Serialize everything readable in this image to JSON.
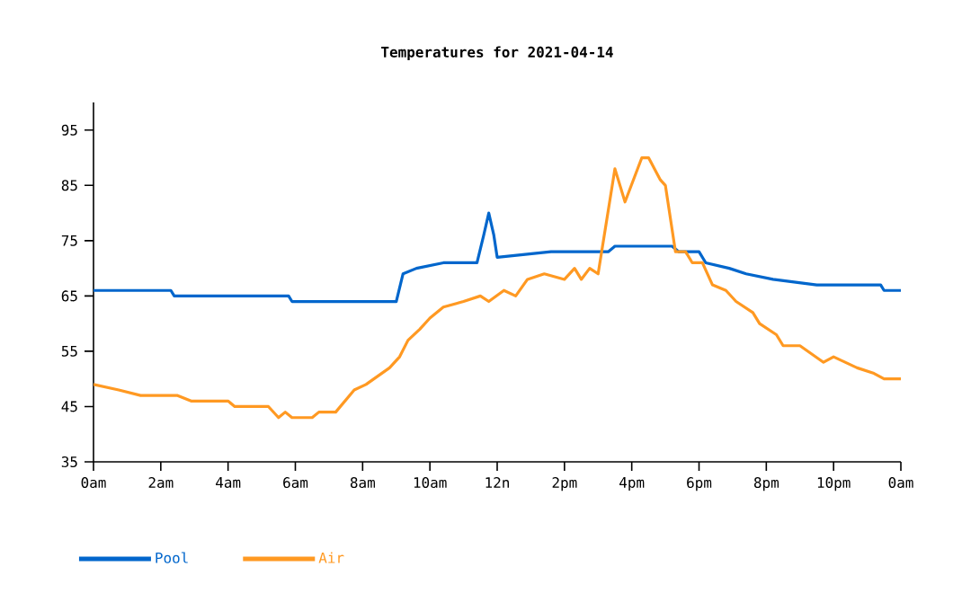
{
  "chart_data": {
    "type": "line",
    "title": "Temperatures for 2021-04-14",
    "xlim": [
      "2021-04-14T00:00",
      "2021-04-15T00:00"
    ],
    "ylim": [
      35,
      100
    ],
    "xticks": [
      {
        "value": "2021-04-14T00:00",
        "label": "0am"
      },
      {
        "value": "2021-04-14T02:00",
        "label": "2am"
      },
      {
        "value": "2021-04-14T04:00",
        "label": "4am"
      },
      {
        "value": "2021-04-14T06:00",
        "label": "6am"
      },
      {
        "value": "2021-04-14T08:00",
        "label": "8am"
      },
      {
        "value": "2021-04-14T10:00",
        "label": "10am"
      },
      {
        "value": "2021-04-14T12:00",
        "label": "12n"
      },
      {
        "value": "2021-04-14T14:00",
        "label": "2pm"
      },
      {
        "value": "2021-04-14T16:00",
        "label": "4pm"
      },
      {
        "value": "2021-04-14T18:00",
        "label": "6pm"
      },
      {
        "value": "2021-04-14T20:00",
        "label": "8pm"
      },
      {
        "value": "2021-04-14T22:00",
        "label": "10pm"
      },
      {
        "value": "2021-04-15T00:00",
        "label": "0am"
      }
    ],
    "yticks": [
      35,
      45,
      55,
      65,
      75,
      85,
      95
    ],
    "legend": "bottom",
    "grid": false,
    "marker": "none",
    "line_style": "solid",
    "series": [
      {
        "name": "Pool",
        "color": "#0066cc",
        "x": [
          "2021-04-14T00:00",
          "2021-04-14T02:18",
          "2021-04-14T02:24",
          "2021-04-14T05:48",
          "2021-04-14T05:54",
          "2021-04-14T09:00",
          "2021-04-14T09:12",
          "2021-04-14T09:36",
          "2021-04-14T10:24",
          "2021-04-14T11:24",
          "2021-04-14T11:36",
          "2021-04-14T11:45",
          "2021-04-14T11:54",
          "2021-04-14T12:00",
          "2021-04-14T13:36",
          "2021-04-14T15:18",
          "2021-04-14T15:30",
          "2021-04-14T17:12",
          "2021-04-14T17:24",
          "2021-04-14T18:00",
          "2021-04-14T18:12",
          "2021-04-14T18:54",
          "2021-04-14T19:24",
          "2021-04-14T20:12",
          "2021-04-14T21:30",
          "2021-04-14T23:24",
          "2021-04-14T23:30",
          "2021-04-15T00:00"
        ],
        "values": [
          66,
          66,
          65,
          65,
          64,
          64,
          69,
          70,
          71,
          71,
          76,
          80,
          76,
          72,
          73,
          73,
          74,
          74,
          73,
          73,
          71,
          70,
          69,
          68,
          67,
          67,
          66,
          66
        ]
      },
      {
        "name": "Air",
        "color": "#ff9922",
        "x": [
          "2021-04-14T00:00",
          "2021-04-14T00:45",
          "2021-04-14T01:24",
          "2021-04-14T02:30",
          "2021-04-14T02:54",
          "2021-04-14T03:12",
          "2021-04-14T04:00",
          "2021-04-14T04:12",
          "2021-04-14T05:12",
          "2021-04-14T05:30",
          "2021-04-14T05:42",
          "2021-04-14T05:54",
          "2021-04-14T06:30",
          "2021-04-14T06:42",
          "2021-04-14T07:12",
          "2021-04-14T07:45",
          "2021-04-14T08:06",
          "2021-04-14T08:48",
          "2021-04-14T09:06",
          "2021-04-14T09:21",
          "2021-04-14T09:42",
          "2021-04-14T10:00",
          "2021-04-14T10:24",
          "2021-04-14T11:00",
          "2021-04-14T11:30",
          "2021-04-14T11:45",
          "2021-04-14T12:12",
          "2021-04-14T12:33",
          "2021-04-14T12:54",
          "2021-04-14T13:24",
          "2021-04-14T14:00",
          "2021-04-14T14:18",
          "2021-04-14T14:30",
          "2021-04-14T14:45",
          "2021-04-14T15:00",
          "2021-04-14T15:30",
          "2021-04-14T15:48",
          "2021-04-14T16:18",
          "2021-04-14T16:30",
          "2021-04-14T16:51",
          "2021-04-14T17:00",
          "2021-04-14T17:18",
          "2021-04-14T17:36",
          "2021-04-14T17:48",
          "2021-04-14T18:06",
          "2021-04-14T18:24",
          "2021-04-14T18:48",
          "2021-04-14T19:06",
          "2021-04-14T19:36",
          "2021-04-14T19:48",
          "2021-04-14T20:18",
          "2021-04-14T20:30",
          "2021-04-14T21:00",
          "2021-04-14T21:42",
          "2021-04-14T22:00",
          "2021-04-14T22:42",
          "2021-04-14T23:12",
          "2021-04-14T23:30",
          "2021-04-15T00:00"
        ],
        "values": [
          49,
          48,
          47,
          47,
          46,
          46,
          46,
          45,
          45,
          43,
          44,
          43,
          43,
          44,
          44,
          48,
          49,
          52,
          54,
          57,
          59,
          61,
          63,
          64,
          65,
          64,
          66,
          65,
          68,
          69,
          68,
          70,
          68,
          70,
          69,
          88,
          82,
          90,
          90,
          86,
          85,
          73,
          73,
          71,
          71,
          67,
          66,
          64,
          62,
          60,
          58,
          56,
          56,
          53,
          54,
          52,
          51,
          50,
          50
        ]
      }
    ]
  }
}
